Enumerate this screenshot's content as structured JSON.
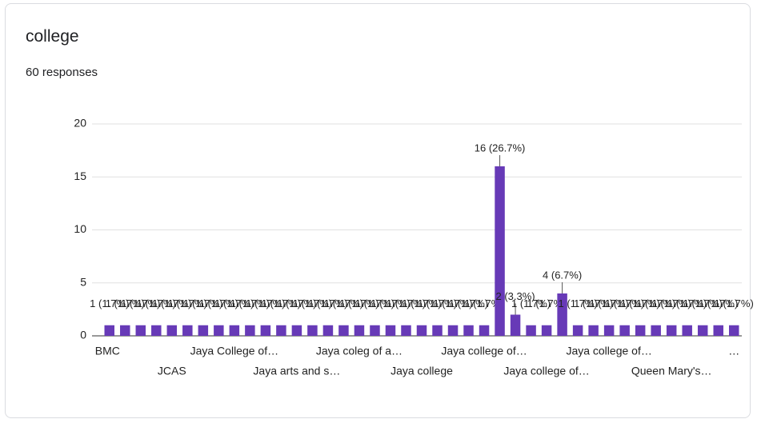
{
  "chart_data": {
    "type": "bar",
    "title": "college",
    "subtitle": "60 responses",
    "categories": [
      "BMC",
      null,
      null,
      null,
      "JCAS",
      null,
      null,
      null,
      "Jaya College of…",
      null,
      null,
      null,
      "Jaya arts and s…",
      null,
      null,
      null,
      "Jaya coleg of a…",
      null,
      null,
      null,
      "Jaya college",
      null,
      null,
      null,
      "Jaya college of…",
      null,
      null,
      null,
      "Jaya college of…",
      null,
      null,
      null,
      "Jaya college of…",
      null,
      null,
      null,
      "Queen Mary's…",
      null,
      null,
      null,
      "…"
    ],
    "values": [
      1,
      1,
      1,
      1,
      1,
      1,
      1,
      1,
      1,
      1,
      1,
      1,
      1,
      1,
      1,
      1,
      1,
      1,
      1,
      1,
      1,
      1,
      1,
      1,
      1,
      16,
      2,
      1,
      1,
      4,
      1,
      1,
      1,
      1,
      1,
      1,
      1,
      1,
      1,
      1,
      1
    ],
    "value_labels": [
      "1 (1.7%)",
      "1 (1.7%)",
      "1 (1.7%)",
      "1 (1.7%)",
      "1 (1.7%)",
      "1 (1.7%)",
      "1 (1.7%)",
      "1 (1.7%)",
      "1 (1.7%)",
      "1 (1.7%)",
      "1 (1.7%)",
      "1 (1.7%)",
      "1 (1.7%)",
      "1 (1.7%)",
      "1 (1.7%)",
      "1 (1.7%)",
      "1 (1.7%)",
      "1 (1.7%)",
      "1 (1.7%)",
      "1 (1.7%)",
      "1 (1.7%)",
      "1 (1.7%)",
      "1 (1.7%)",
      "1 (1.7%)",
      "1 (1.7%)",
      "16 (26.7%)",
      "2 (3.3%)",
      "1 (1.7%)",
      "1 (1.7%)",
      "4 (6.7%)",
      "1 (1.7%)",
      "1 (1.7%)",
      "1 (1.7%)",
      "1 (1.7%)",
      "1 (1.7%)",
      "1 (1.7%)",
      "1 (1.7%)",
      "1 (1.7%)",
      "1 (1.7%)",
      "1 (1.7%)",
      "1 (1.7%)"
    ],
    "color": "#673ab7",
    "ylim": [
      0,
      20
    ],
    "yticks": [
      0,
      5,
      10,
      15,
      20
    ],
    "grid": true
  }
}
